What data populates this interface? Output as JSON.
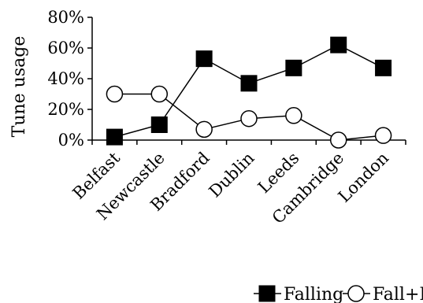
{
  "chart_data": {
    "type": "line",
    "title": "",
    "xlabel": "",
    "ylabel": "Tune usage",
    "ylim": [
      0,
      80
    ],
    "ytick_values": [
      0,
      20,
      40,
      60,
      80
    ],
    "ytick_labels": [
      "0%",
      "20%",
      "40%",
      "60%",
      "80%"
    ],
    "categories": [
      "Belfast",
      "Newcastle",
      "Bradford",
      "Dublin",
      "Leeds",
      "Cambridge",
      "London"
    ],
    "series": [
      {
        "name": "Falling",
        "marker": "filled-square",
        "color": "#000000",
        "values": [
          2,
          10,
          53,
          37,
          47,
          62,
          47
        ]
      },
      {
        "name": "Fall+Rising",
        "marker": "open-circle",
        "color": "#000000",
        "values": [
          30,
          30,
          7,
          14,
          16,
          0,
          3
        ]
      }
    ],
    "grid": false,
    "legend_position": "bottom"
  }
}
